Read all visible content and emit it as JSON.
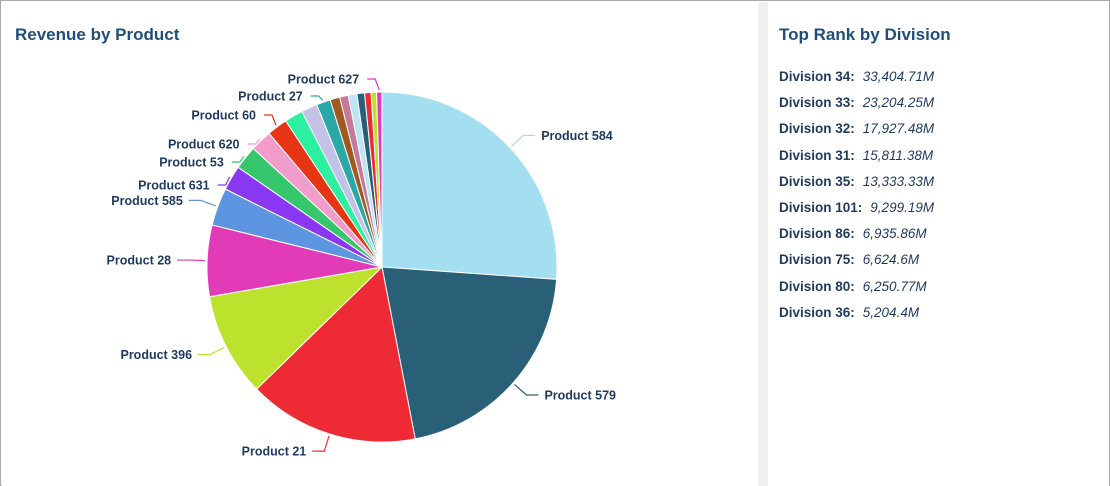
{
  "left_panel": {
    "title": "Revenue by Product"
  },
  "right_panel": {
    "title": "Top Rank by Division"
  },
  "chart_data": {
    "type": "pie",
    "title": "Revenue by Product",
    "start_angle": "12 o'clock, clockwise",
    "slices": [
      {
        "label": "Product 584",
        "value": 26.2,
        "color": "#a3dff0",
        "show_label": true
      },
      {
        "label": "Product 579",
        "value": 20.9,
        "color": "#2a5f78",
        "show_label": true
      },
      {
        "label": "Product 21",
        "value": 15.8,
        "color": "#ee2a35",
        "show_label": true
      },
      {
        "label": "Product 396",
        "value": 9.6,
        "color": "#bce22e",
        "show_label": true
      },
      {
        "label": "Product 28",
        "value": 6.6,
        "color": "#e23bb7",
        "show_label": true
      },
      {
        "label": "Product 585",
        "value": 3.5,
        "color": "#5e95e0",
        "show_label": true
      },
      {
        "label": "Product 631",
        "value": 2.3,
        "color": "#8a37f2",
        "show_label": true
      },
      {
        "label": "Product 53",
        "value": 2.2,
        "color": "#36c66b",
        "show_label": true
      },
      {
        "label": "Product 620",
        "value": 2.0,
        "color": "#f29ccb",
        "show_label": true
      },
      {
        "label": "Product 60",
        "value": 1.9,
        "color": "#e63514",
        "show_label": true
      },
      {
        "label": "",
        "value": 1.7,
        "color": "#2cf0a0",
        "show_label": false
      },
      {
        "label": "",
        "value": 1.5,
        "color": "#c3c3e8",
        "show_label": false
      },
      {
        "label": "Product 27",
        "value": 1.3,
        "color": "#2aa8a8",
        "show_label": true
      },
      {
        "label": "",
        "value": 0.9,
        "color": "#a05a1e",
        "show_label": false
      },
      {
        "label": "",
        "value": 0.8,
        "color": "#c67a9a",
        "show_label": false
      },
      {
        "label": "",
        "value": 0.8,
        "color": "#bce4f2",
        "show_label": false
      },
      {
        "label": "",
        "value": 0.7,
        "color": "#2a5f78",
        "show_label": false
      },
      {
        "label": "",
        "value": 0.6,
        "color": "#ee2a35",
        "show_label": false
      },
      {
        "label": "",
        "value": 0.5,
        "color": "#bce22e",
        "show_label": false
      },
      {
        "label": "Product 627",
        "value": 0.5,
        "color": "#e23bb7",
        "show_label": true
      }
    ]
  },
  "top_rank": [
    {
      "name": "Division 34",
      "value": "33,404.71M"
    },
    {
      "name": "Division 33",
      "value": "23,204.25M"
    },
    {
      "name": "Division 32",
      "value": "17,927.48M"
    },
    {
      "name": "Division 31",
      "value": "15,811.38M"
    },
    {
      "name": "Division 35",
      "value": "13,333.33M"
    },
    {
      "name": "Division 101",
      "value": "9,299.19M"
    },
    {
      "name": "Division 86",
      "value": "6,935.86M"
    },
    {
      "name": "Division 75",
      "value": "6,624.6M"
    },
    {
      "name": "Division 80",
      "value": "6,250.77M"
    },
    {
      "name": "Division 36",
      "value": "5,204.4M"
    }
  ],
  "colors": {
    "title": "#1f4e79",
    "label_text": "#1f3a5f",
    "divider": "#efefef",
    "frame_border": "#a9a9a9"
  }
}
